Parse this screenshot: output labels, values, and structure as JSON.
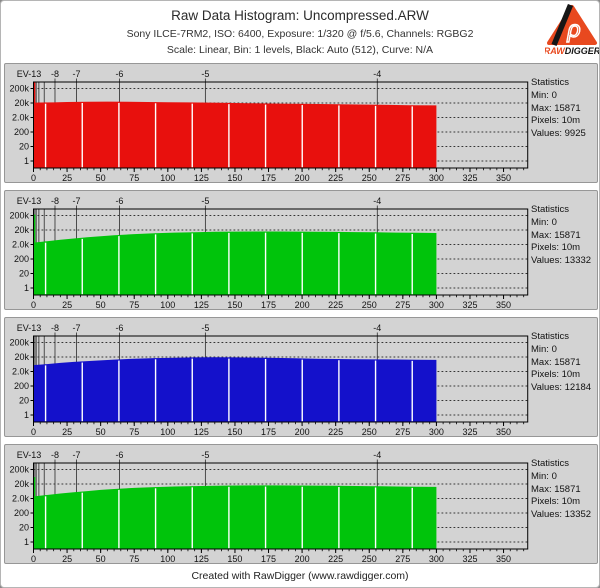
{
  "header": {
    "title": "Raw Data Histogram: Uncompressed.ARW",
    "subtitle_camera": "Sony ILCE-7RM2, ISO: 6400, Exposure: 1/320 @ f/5.6, Channels: RGBG2",
    "subtitle_scale": "Scale: Linear, Bin: 1 levels, Black: Auto (512), Curve: N/A"
  },
  "logo": {
    "brand_left": "RAW",
    "brand_right": "DIGGER",
    "rho_glyph": "ρ"
  },
  "footer": {
    "credit": "Created with RawDigger (www.rawdigger.com)"
  },
  "statistics_label": "Statistics",
  "ui_colors": {
    "panel_bg": "#d3d3d3",
    "red_channel": "#e8100d",
    "green_channel": "#00c40b",
    "blue_channel": "#1411cb",
    "logo_orange": "#e8491f"
  },
  "axes": {
    "ev_left_label": "EV-13",
    "ev_lines": [
      {
        "u": 1
      },
      {
        "u": 2
      },
      {
        "u": 4
      },
      {
        "u": 8
      },
      {
        "u": 16,
        "label": "-8"
      },
      {
        "u": 32,
        "label": "-7"
      },
      {
        "u": 64,
        "label": "-6"
      },
      {
        "u": 128,
        "label": "-5"
      },
      {
        "u": 256,
        "label": "-4"
      }
    ],
    "y_labels": [
      "200k",
      "20k",
      "2.0k",
      "200",
      "20",
      "1"
    ],
    "y_values": [
      200000,
      20000,
      2000,
      200,
      20,
      1
    ],
    "x_ticks": [
      0,
      25,
      50,
      75,
      100,
      125,
      150,
      175,
      200,
      225,
      250,
      275,
      300,
      325,
      350
    ],
    "x_minor_step": 5,
    "x_minor_max": 365,
    "x_max_units": 368,
    "gap_positions": [
      9,
      36.3,
      63.6,
      90.9,
      118.2,
      145.5,
      172.8,
      200.1,
      227.4,
      254.7,
      282
    ]
  },
  "chart_data": [
    {
      "type": "histogram",
      "channel": "R",
      "color": "#e8100d",
      "y_scale": "log",
      "x_range": [
        0,
        368
      ],
      "fill_end": 300,
      "spike_count": 600000,
      "x": [
        0,
        5,
        15,
        25,
        40,
        55,
        70,
        85,
        100,
        115,
        130,
        145,
        160,
        175,
        190,
        205,
        220,
        235,
        250,
        265,
        280,
        300
      ],
      "counts": [
        20500,
        21500,
        22000,
        23500,
        24500,
        24800,
        24300,
        23600,
        22800,
        22000,
        21200,
        20300,
        19400,
        18600,
        17900,
        17300,
        16700,
        16100,
        15400,
        14800,
        14200,
        13600
      ],
      "stats": {
        "min": 0,
        "max": 15871,
        "pixels": "10m",
        "values": 9925
      },
      "stats_lines": [
        "Min: 0",
        "Max: 15871",
        "Pixels: 10m",
        "Values: 9925"
      ]
    },
    {
      "type": "histogram",
      "channel": "G",
      "color": "#00c40b",
      "y_scale": "log",
      "x_range": [
        0,
        368
      ],
      "fill_end": 300,
      "spike_count": 230000,
      "x": [
        0,
        10,
        20,
        30,
        40,
        50,
        60,
        75,
        90,
        105,
        120,
        135,
        150,
        165,
        180,
        195,
        210,
        225,
        240,
        255,
        270,
        285,
        300
      ],
      "counts": [
        2700,
        3300,
        4200,
        5200,
        6300,
        7500,
        8800,
        10500,
        12000,
        13200,
        14200,
        15000,
        15500,
        15800,
        15800,
        15500,
        15200,
        14800,
        14300,
        13800,
        13200,
        12800,
        12500
      ],
      "stats": {
        "min": 0,
        "max": 15871,
        "pixels": "10m",
        "values": 13332
      },
      "stats_lines": [
        "Min: 0",
        "Max: 15871",
        "Pixels: 10m",
        "Values: 13332"
      ]
    },
    {
      "type": "histogram",
      "channel": "B",
      "color": "#1411cb",
      "y_scale": "log",
      "x_range": [
        0,
        368
      ],
      "fill_end": 300,
      "spike_count": null,
      "x": [
        0,
        10,
        20,
        30,
        45,
        60,
        75,
        90,
        105,
        120,
        135,
        150,
        165,
        180,
        195,
        210,
        225,
        240,
        255,
        270,
        285,
        300
      ],
      "counts": [
        5500,
        6500,
        7800,
        9200,
        11200,
        13200,
        15200,
        16800,
        18000,
        18800,
        19000,
        18700,
        18100,
        17200,
        16200,
        15300,
        14600,
        14000,
        13700,
        13400,
        13000,
        12600
      ],
      "stats": {
        "min": 0,
        "max": 15871,
        "pixels": "10m",
        "values": 12184
      },
      "stats_lines": [
        "Min: 0",
        "Max: 15871",
        "Pixels: 10m",
        "Values: 12184"
      ]
    },
    {
      "type": "histogram",
      "channel": "G2",
      "color": "#00c40b",
      "y_scale": "log",
      "x_range": [
        0,
        368
      ],
      "fill_end": 300,
      "spike_count": 60000,
      "x": [
        0,
        10,
        20,
        30,
        40,
        50,
        60,
        75,
        90,
        105,
        120,
        135,
        150,
        165,
        180,
        195,
        210,
        225,
        240,
        255,
        270,
        285,
        300
      ],
      "counts": [
        2800,
        3500,
        4400,
        5400,
        6500,
        7800,
        9100,
        10800,
        12200,
        13400,
        14400,
        15200,
        15700,
        16000,
        16000,
        15700,
        15400,
        15000,
        14500,
        14000,
        13400,
        13000,
        12700
      ],
      "stats": {
        "min": 0,
        "max": 15871,
        "pixels": "10m",
        "values": 13352
      },
      "stats_lines": [
        "Min: 0",
        "Max: 15871",
        "Pixels: 10m",
        "Values: 13352"
      ]
    }
  ]
}
